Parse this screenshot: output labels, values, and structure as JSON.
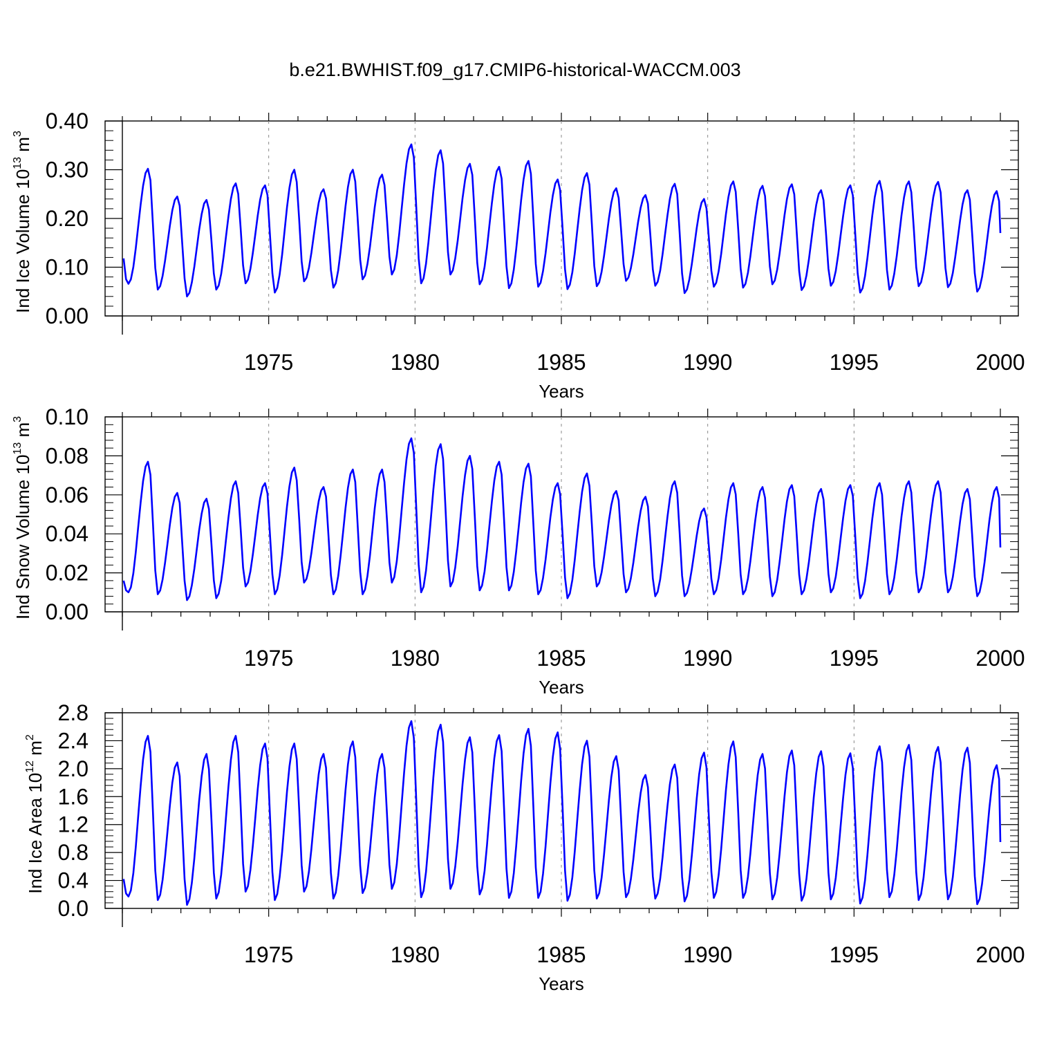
{
  "figure": {
    "title": "b.e21.BWHIST.f09_g17.CMIP6-historical-WACCM.003"
  },
  "colors": {
    "series": "#0000ff",
    "axes": "#000000",
    "grid": "#888888"
  },
  "chart_data": [
    {
      "type": "line",
      "ylabel": "Ind Ice Volume 10",
      "ylabel_exp": "13",
      "ylabel_unit": " m",
      "ylabel_unit_exp": "3",
      "xlabel": "Years",
      "xlim": [
        1970,
        2000
      ],
      "ylim": [
        0,
        0.4
      ],
      "yticks": [
        0.0,
        0.1,
        0.2,
        0.3,
        0.4
      ],
      "ytick_labels": [
        "0.00",
        "0.10",
        "0.20",
        "0.30",
        "0.40"
      ],
      "xticks": [
        1975,
        1980,
        1985,
        1990,
        1995,
        2000
      ],
      "xtick_labels": [
        "1975",
        "1980",
        "1985",
        "1990",
        "1995",
        "2000"
      ],
      "series": [
        {
          "name": "Ind Ice Volume",
          "start_year": 1970,
          "monthly_peaks": [
            0.302,
            0.245,
            0.238,
            0.272,
            0.268,
            0.3,
            0.26,
            0.3,
            0.29,
            0.352,
            0.34,
            0.312,
            0.306,
            0.318,
            0.28,
            0.293,
            0.262,
            0.248,
            0.271,
            0.24,
            0.276,
            0.267,
            0.27,
            0.258,
            0.268,
            0.277,
            0.276,
            0.275,
            0.258,
            0.256
          ],
          "monthly_troughs": [
            0.066,
            0.054,
            0.04,
            0.054,
            0.067,
            0.048,
            0.071,
            0.058,
            0.075,
            0.085,
            0.067,
            0.085,
            0.065,
            0.057,
            0.06,
            0.055,
            0.061,
            0.072,
            0.062,
            0.047,
            0.06,
            0.058,
            0.065,
            0.053,
            0.062,
            0.048,
            0.054,
            0.061,
            0.059,
            0.05
          ],
          "start_value": 0.118,
          "end_value": 0.17
        }
      ]
    },
    {
      "type": "line",
      "ylabel": "Ind Snow Volume 10",
      "ylabel_exp": "13",
      "ylabel_unit": " m",
      "ylabel_unit_exp": "3",
      "xlabel": "Years",
      "xlim": [
        1970,
        2000
      ],
      "ylim": [
        0,
        0.1
      ],
      "yticks": [
        0.0,
        0.02,
        0.04,
        0.06,
        0.08,
        0.1
      ],
      "ytick_labels": [
        "0.00",
        "0.02",
        "0.04",
        "0.06",
        "0.08",
        "0.10"
      ],
      "xticks": [
        1975,
        1980,
        1985,
        1990,
        1995,
        2000
      ],
      "xtick_labels": [
        "1975",
        "1980",
        "1985",
        "1990",
        "1995",
        "2000"
      ],
      "series": [
        {
          "name": "Ind Snow Volume",
          "start_year": 1970,
          "monthly_peaks": [
            0.077,
            0.061,
            0.058,
            0.067,
            0.066,
            0.074,
            0.064,
            0.073,
            0.073,
            0.089,
            0.086,
            0.08,
            0.077,
            0.076,
            0.066,
            0.071,
            0.062,
            0.059,
            0.067,
            0.053,
            0.066,
            0.064,
            0.065,
            0.063,
            0.065,
            0.066,
            0.067,
            0.067,
            0.063,
            0.064
          ],
          "monthly_troughs": [
            0.01,
            0.009,
            0.006,
            0.007,
            0.013,
            0.009,
            0.015,
            0.009,
            0.009,
            0.015,
            0.01,
            0.013,
            0.011,
            0.011,
            0.009,
            0.007,
            0.013,
            0.01,
            0.008,
            0.008,
            0.009,
            0.009,
            0.008,
            0.009,
            0.01,
            0.007,
            0.009,
            0.01,
            0.01,
            0.008
          ],
          "start_value": 0.016,
          "end_value": 0.033
        }
      ]
    },
    {
      "type": "line",
      "ylabel": "Ind Ice Area 10",
      "ylabel_exp": "12",
      "ylabel_unit": " m",
      "ylabel_unit_exp": "2",
      "xlabel": "Years",
      "xlim": [
        1970,
        2000
      ],
      "ylim": [
        0,
        2.8
      ],
      "yticks": [
        0.0,
        0.4,
        0.8,
        1.2,
        1.6,
        2.0,
        2.4,
        2.8
      ],
      "ytick_labels": [
        "0.0",
        "0.4",
        "0.8",
        "1.2",
        "1.6",
        "2.0",
        "2.4",
        "2.8"
      ],
      "xticks": [
        1975,
        1980,
        1985,
        1990,
        1995,
        2000
      ],
      "xtick_labels": [
        "1975",
        "1980",
        "1985",
        "1990",
        "1995",
        "2000"
      ],
      "series": [
        {
          "name": "Ind Ice Area",
          "start_year": 1970,
          "monthly_peaks": [
            2.47,
            2.09,
            2.21,
            2.47,
            2.36,
            2.36,
            2.21,
            2.39,
            2.21,
            2.68,
            2.63,
            2.45,
            2.48,
            2.57,
            2.52,
            2.4,
            2.18,
            1.91,
            2.06,
            2.23,
            2.39,
            2.21,
            2.26,
            2.25,
            2.22,
            2.32,
            2.34,
            2.31,
            2.3,
            2.05
          ],
          "monthly_troughs": [
            0.17,
            0.12,
            0.05,
            0.14,
            0.24,
            0.12,
            0.24,
            0.14,
            0.22,
            0.28,
            0.16,
            0.28,
            0.2,
            0.15,
            0.15,
            0.11,
            0.14,
            0.16,
            0.14,
            0.1,
            0.15,
            0.15,
            0.13,
            0.11,
            0.13,
            0.07,
            0.16,
            0.12,
            0.13,
            0.06
          ],
          "start_value": 0.42,
          "end_value": 0.95
        }
      ]
    }
  ]
}
